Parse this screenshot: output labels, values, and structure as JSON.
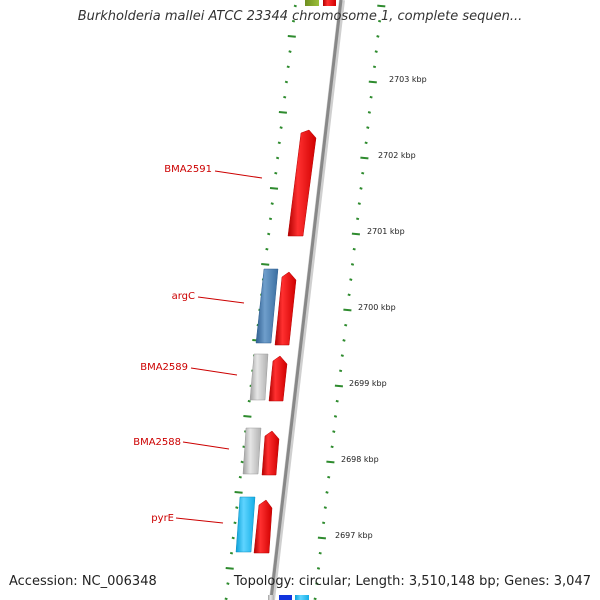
{
  "header": {
    "title": "Burkholderia mallei ATCC 23344 chromosome 1, complete sequen..."
  },
  "footer": {
    "accession": "Accession: NC_006348",
    "summary": "Topology: circular; Length: 3,510,148 bp; Genes: 3,047"
  },
  "colors": {
    "forward_gene": "#ee1111",
    "reverse_gene_grey": "#c8c8c8",
    "reverse_gene_blue": "#4a7fb5",
    "reverse_gene_cyan": "#22bbee",
    "label_red": "#cc0000",
    "tick_green": "#2e8b2e",
    "backbone_grey": "#888888"
  },
  "kbp_markers": [
    "2703 kbp",
    "2702 kbp",
    "2701 kbp",
    "2700 kbp",
    "2699 kbp",
    "2698 kbp",
    "2697 kbp"
  ],
  "gene_labels": [
    "BMA2591",
    "argC",
    "BMA2589",
    "BMA2588",
    "pyrE"
  ]
}
